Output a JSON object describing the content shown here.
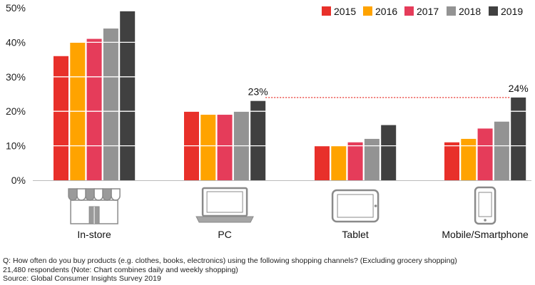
{
  "chart_data": {
    "type": "bar",
    "categories": [
      "In-store",
      "PC",
      "Tablet",
      "Mobile/Smartphone"
    ],
    "series": [
      {
        "name": "2015",
        "color": "#e8302a",
        "values": [
          36,
          20,
          10,
          11
        ]
      },
      {
        "name": "2016",
        "color": "#ffa300",
        "values": [
          40,
          19,
          10,
          12
        ]
      },
      {
        "name": "2017",
        "color": "#e53c5a",
        "values": [
          41,
          19,
          11,
          15
        ]
      },
      {
        "name": "2018",
        "color": "#939393",
        "values": [
          44,
          20,
          12,
          17
        ]
      },
      {
        "name": "2019",
        "color": "#404040",
        "values": [
          49,
          23,
          16,
          24
        ]
      }
    ],
    "yticks": [
      "0%",
      "10%",
      "20%",
      "30%",
      "40%",
      "50%"
    ],
    "ylim": [
      0,
      50
    ],
    "grid": "white horizontal lines over bars",
    "legend_position": "top-right",
    "annotations": [
      {
        "label": "23%",
        "category": "PC",
        "series": "2019",
        "value": 23
      },
      {
        "label": "24%",
        "category": "Mobile/Smartphone",
        "series": "2019",
        "value": 24
      }
    ],
    "icons": [
      "storefront-icon",
      "laptop-icon",
      "tablet-icon",
      "smartphone-icon"
    ]
  },
  "notes": {
    "question": "Q: How often do you buy products (e.g. clothes, books, electronics) using the following shopping channels? (Excluding grocery shopping)",
    "respondents": "21,480 respondents (Note: Chart combines daily and weekly shopping)",
    "source": "Source: Global Consumer Insights Survey 2019"
  }
}
